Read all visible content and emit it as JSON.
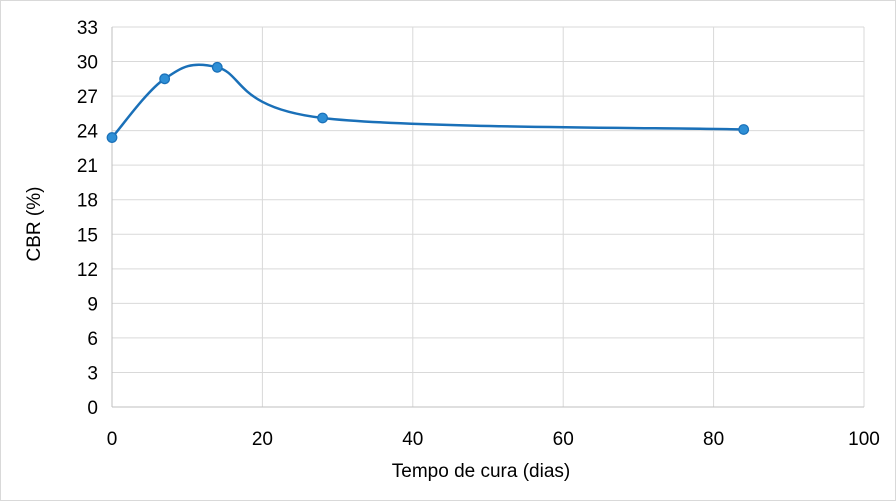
{
  "chart_data": {
    "type": "line",
    "smooth": true,
    "title": "",
    "xlabel": "Tempo de cura (dias)",
    "ylabel": "CBR (%)",
    "xlim": [
      0,
      100
    ],
    "ylim": [
      0,
      33
    ],
    "xticks": [
      0,
      20,
      40,
      60,
      80,
      100
    ],
    "yticks": [
      0,
      3,
      6,
      9,
      12,
      15,
      18,
      21,
      24,
      27,
      30,
      33
    ],
    "grid": true,
    "legend": "none",
    "series": [
      {
        "color": "#1a70b8",
        "marker_color": "#2e8fd6",
        "x": [
          0,
          7,
          14,
          28,
          84
        ],
        "y": [
          23.4,
          28.5,
          29.5,
          25.1,
          24.1
        ]
      }
    ]
  }
}
